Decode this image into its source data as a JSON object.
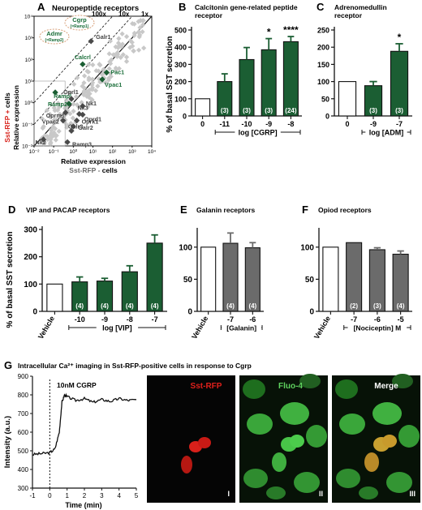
{
  "colors": {
    "green": "#1b5e33",
    "gray": "#6b6b6b",
    "scatter_gray": "#c8c8c8",
    "red": "#e0201b",
    "fluo_green": "#3fbf3f",
    "text_green": "#1b6e3a",
    "text_red": "#d8231c"
  },
  "panels": {
    "A": {
      "letter": "A",
      "title": "Neuropeptide receptors",
      "ylabel_red": "Sst-RFP +",
      "ylabel_rest": " cells",
      "ylabel2": "Relative expression",
      "xlabel": "Relative expression",
      "xlabel2_pre": "Sst-RFP -",
      "xlabel2_post": " cells",
      "diag_labels": [
        "100x",
        "10x",
        "1x"
      ],
      "ticks": [
        "10⁻²",
        "10⁻¹",
        "10⁰",
        "10¹",
        "10²",
        "10³",
        "10⁴"
      ],
      "bubble1": [
        "Cgrp",
        "(=Ramp1)"
      ],
      "bubble2": [
        "Admr",
        "(=Ramp2)"
      ]
    },
    "B": {
      "letter": "B",
      "title": [
        "Calcitonin gene-related peptide",
        "receptor"
      ]
    },
    "C": {
      "letter": "C",
      "title": [
        "Adrenomedullin",
        "receptor"
      ]
    },
    "D": {
      "letter": "D",
      "title": "VIP and PACAP receptors"
    },
    "E": {
      "letter": "E",
      "title": "Galanin receptors"
    },
    "F": {
      "letter": "F",
      "title": "Opiod receptors"
    },
    "G": {
      "letter": "G",
      "title": "Intracellular Ca²⁺ imaging in Sst-RFP-positive cells in response to Cgrp",
      "ylabel": "Intensity (a.u.)",
      "xlabel": "Time (min)",
      "annotation": "10nM CGRP",
      "img_labels": [
        "Sst-RFP",
        "Fluo-4",
        "Merge"
      ],
      "roman": [
        "I",
        "II",
        "III"
      ]
    }
  },
  "shared": {
    "ylabel": "% of basal SST secretion"
  },
  "chart_data": [
    {
      "type": "scatter",
      "panel": "A",
      "xlim": [
        0.01,
        10000
      ],
      "ylim": [
        0.01,
        10000
      ],
      "scale": "log",
      "labeled_points": [
        {
          "label": "Galr1",
          "x": 8,
          "y": 700
        },
        {
          "label": "Calcrl",
          "x": 3,
          "y": 60
        },
        {
          "label": "Pac1",
          "x": 50,
          "y": 25
        },
        {
          "label": "Vpac1",
          "x": 30,
          "y": 12
        },
        {
          "label": "Rampl",
          "x": 0.12,
          "y": 3
        },
        {
          "label": "Oprl1",
          "x": 0.8,
          "y": 1.5
        },
        {
          "label": "Ramp2",
          "x": 0.6,
          "y": 0.9
        },
        {
          "label": "Nk1",
          "x": 3,
          "y": 0.7
        },
        {
          "label": "Oprm1",
          "x": 0.4,
          "y": 0.35
        },
        {
          "label": "Nk3",
          "x": 2,
          "y": 0.3
        },
        {
          "label": "Oprd1",
          "x": 3,
          "y": 0.28
        },
        {
          "label": "Vpac2",
          "x": 0.3,
          "y": 0.15
        },
        {
          "label": "Oprk1",
          "x": 1.5,
          "y": 0.15
        },
        {
          "label": "Galr2",
          "x": 1,
          "y": 0.08
        },
        {
          "label": "Galr3",
          "x": 0.8,
          "y": 0.05
        },
        {
          "label": "Ramp3",
          "x": 0.5,
          "y": 0.015
        },
        {
          "label": "Nk2",
          "x": 0.03,
          "y": 0.02
        }
      ]
    },
    {
      "type": "bar",
      "panel": "B",
      "xlabel": "log [CGRP]",
      "categories": [
        "0",
        "-11",
        "-10",
        "-9",
        "-8"
      ],
      "values": [
        100,
        200,
        328,
        385,
        432
      ],
      "errors": [
        0,
        45,
        70,
        65,
        30
      ],
      "n": [
        null,
        "(3)",
        "(3)",
        "(3)",
        "(24)"
      ],
      "sig": [
        "",
        "",
        "",
        "*",
        "****"
      ],
      "ylim": [
        0,
        500
      ],
      "yticks": [
        0,
        100,
        200,
        300,
        400,
        500
      ]
    },
    {
      "type": "bar",
      "panel": "C",
      "xlabel": "log [ADM]",
      "categories": [
        "0",
        "-9",
        "-7"
      ],
      "values": [
        100,
        88,
        188
      ],
      "errors": [
        0,
        12,
        22
      ],
      "n": [
        null,
        "(3)",
        "(3)"
      ],
      "sig": [
        "",
        "",
        "*"
      ],
      "ylim": [
        0,
        250
      ],
      "yticks": [
        0,
        50,
        100,
        150,
        200,
        250
      ]
    },
    {
      "type": "bar",
      "panel": "D",
      "xlabel": "log [VIP]",
      "categories": [
        "Vehicle",
        "-10",
        "-9",
        "-8",
        "-7"
      ],
      "values": [
        100,
        108,
        111,
        145,
        250
      ],
      "errors": [
        0,
        18,
        10,
        22,
        30
      ],
      "n": [
        null,
        "(4)",
        "(4)",
        "(4)",
        "(4)"
      ],
      "ylim": [
        0,
        300
      ],
      "yticks": [
        0,
        100,
        200,
        300
      ]
    },
    {
      "type": "bar",
      "panel": "E",
      "xlabel": "[Galanin]",
      "categories": [
        "Vehicle",
        "-7",
        "-6"
      ],
      "values": [
        100,
        106,
        99
      ],
      "errors": [
        0,
        16,
        8
      ],
      "n": [
        null,
        "(4)",
        "(4)"
      ],
      "ylim": [
        0,
        125
      ],
      "yticks": [
        0,
        50,
        100
      ]
    },
    {
      "type": "bar",
      "panel": "F",
      "xlabel": "[Nociceptin] M",
      "categories": [
        "Vehicle",
        "-7",
        "-6",
        "-5"
      ],
      "values": [
        100,
        107,
        96,
        89
      ],
      "errors": [
        0,
        0,
        3,
        5
      ],
      "n": [
        null,
        "(2)",
        "(3)",
        "(4)"
      ],
      "ylim": [
        0,
        125
      ],
      "yticks": [
        0,
        50,
        100
      ]
    },
    {
      "type": "line",
      "panel": "G",
      "xlim": [
        -1,
        5
      ],
      "ylim": [
        300,
        900
      ],
      "xticks": [
        -1,
        0,
        1,
        2,
        3,
        4,
        5
      ],
      "yticks": [
        300,
        400,
        500,
        600,
        700,
        800,
        900
      ],
      "x": [
        -1,
        -0.5,
        0,
        0.3,
        0.55,
        0.7,
        0.85,
        1,
        1.5,
        2,
        2.5,
        3,
        3.5,
        4,
        4.5,
        5
      ],
      "y": [
        480,
        485,
        490,
        510,
        600,
        760,
        800,
        790,
        770,
        780,
        760,
        775,
        765,
        780,
        770,
        775
      ]
    }
  ]
}
